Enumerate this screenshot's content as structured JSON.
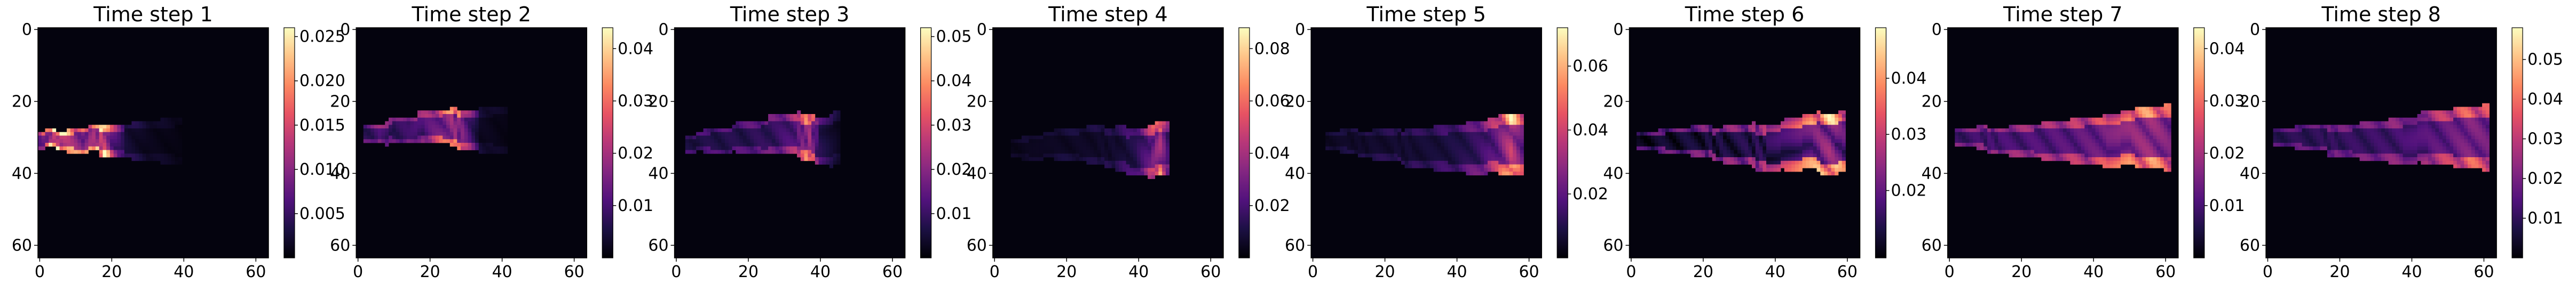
{
  "figure": {
    "colormap": "magma",
    "colormap_stops": [
      "#000004",
      "#1c1044",
      "#51127c",
      "#832681",
      "#b73779",
      "#e75263",
      "#fc8961",
      "#fec488",
      "#fcfdbf"
    ]
  },
  "chart_data": [
    {
      "type": "heatmap",
      "title": "Time step 1",
      "grid_size": [
        64,
        64
      ],
      "x_ticks": [
        "0",
        "20",
        "40",
        "60"
      ],
      "y_ticks": [
        "0",
        "20",
        "40",
        "60"
      ],
      "colorbar_ticks": [
        "0.005",
        "0.010",
        "0.015",
        "0.020",
        "0.025"
      ],
      "colorbar_tick_values": [
        0.005,
        0.01,
        0.015,
        0.02,
        0.025
      ],
      "colorbar_range": [
        0.0,
        0.026
      ],
      "plume": [
        {
          "x": 0,
          "y": 31,
          "v": 0.01
        },
        {
          "x": 3,
          "y": 30,
          "v": 0.021
        },
        {
          "x": 6,
          "y": 31,
          "v": 0.022
        },
        {
          "x": 9,
          "y": 31,
          "v": 0.018
        },
        {
          "x": 12,
          "y": 31,
          "v": 0.016
        },
        {
          "x": 15,
          "y": 30,
          "v": 0.018
        },
        {
          "x": 18,
          "y": 31,
          "v": 0.023
        },
        {
          "x": 20,
          "y": 31,
          "v": 0.013
        },
        {
          "x": 24,
          "y": 31,
          "v": 0.004
        },
        {
          "x": 30,
          "y": 31,
          "v": 0.002
        },
        {
          "x": 40,
          "y": 31,
          "v": 0.001
        }
      ]
    },
    {
      "type": "heatmap",
      "title": "Time step 2",
      "grid_size": [
        64,
        64
      ],
      "x_ticks": [
        "0",
        "20",
        "40",
        "60"
      ],
      "y_ticks": [
        "0",
        "20",
        "40",
        "60"
      ],
      "colorbar_ticks": [
        "0.01",
        "0.02",
        "0.03",
        "0.04"
      ],
      "colorbar_tick_values": [
        0.01,
        0.02,
        0.03,
        0.04
      ],
      "colorbar_range": [
        0.0,
        0.044
      ],
      "plume": [
        {
          "x": 2,
          "y": 29,
          "v": 0.012
        },
        {
          "x": 6,
          "y": 29,
          "v": 0.016
        },
        {
          "x": 10,
          "y": 28,
          "v": 0.013
        },
        {
          "x": 14,
          "y": 28,
          "v": 0.014
        },
        {
          "x": 18,
          "y": 27,
          "v": 0.017
        },
        {
          "x": 22,
          "y": 27,
          "v": 0.022
        },
        {
          "x": 26,
          "y": 27,
          "v": 0.03
        },
        {
          "x": 29,
          "y": 28,
          "v": 0.025
        },
        {
          "x": 34,
          "y": 28,
          "v": 0.004
        },
        {
          "x": 42,
          "y": 28,
          "v": 0.002
        }
      ]
    },
    {
      "type": "heatmap",
      "title": "Time step 3",
      "grid_size": [
        64,
        64
      ],
      "x_ticks": [
        "0",
        "20",
        "40",
        "60"
      ],
      "y_ticks": [
        "0",
        "20",
        "40",
        "60"
      ],
      "colorbar_ticks": [
        "0.01",
        "0.02",
        "0.03",
        "0.04",
        "0.05"
      ],
      "colorbar_tick_values": [
        0.01,
        0.02,
        0.03,
        0.04,
        0.05
      ],
      "colorbar_range": [
        0.0,
        0.052
      ],
      "plume": [
        {
          "x": 3,
          "y": 32,
          "v": 0.01
        },
        {
          "x": 8,
          "y": 31,
          "v": 0.011
        },
        {
          "x": 13,
          "y": 31,
          "v": 0.012
        },
        {
          "x": 18,
          "y": 30,
          "v": 0.012
        },
        {
          "x": 23,
          "y": 30,
          "v": 0.014
        },
        {
          "x": 28,
          "y": 29,
          "v": 0.016
        },
        {
          "x": 33,
          "y": 29,
          "v": 0.022
        },
        {
          "x": 37,
          "y": 30,
          "v": 0.036
        },
        {
          "x": 40,
          "y": 31,
          "v": 0.012
        },
        {
          "x": 46,
          "y": 30,
          "v": 0.003
        }
      ]
    },
    {
      "type": "heatmap",
      "title": "Time step 4",
      "grid_size": [
        64,
        64
      ],
      "x_ticks": [
        "0",
        "20",
        "40",
        "60"
      ],
      "y_ticks": [
        "0",
        "20",
        "40",
        "60"
      ],
      "colorbar_ticks": [
        "0.02",
        "0.04",
        "0.06",
        "0.08"
      ],
      "colorbar_tick_values": [
        0.02,
        0.04,
        0.06,
        0.08
      ],
      "colorbar_range": [
        0.0,
        0.088
      ],
      "plume": [
        {
          "x": 5,
          "y": 33,
          "v": 0.006
        },
        {
          "x": 10,
          "y": 33,
          "v": 0.007
        },
        {
          "x": 16,
          "y": 32,
          "v": 0.008
        },
        {
          "x": 22,
          "y": 32,
          "v": 0.009
        },
        {
          "x": 28,
          "y": 32,
          "v": 0.01
        },
        {
          "x": 34,
          "y": 33,
          "v": 0.012
        },
        {
          "x": 39,
          "y": 34,
          "v": 0.02
        },
        {
          "x": 43,
          "y": 34,
          "v": 0.04
        },
        {
          "x": 46,
          "y": 33,
          "v": 0.062
        },
        {
          "x": 49,
          "y": 33,
          "v": 0.016
        }
      ]
    },
    {
      "type": "heatmap",
      "title": "Time step 5",
      "grid_size": [
        64,
        64
      ],
      "x_ticks": [
        "0",
        "20",
        "40",
        "60"
      ],
      "y_ticks": [
        "0",
        "20",
        "40",
        "60"
      ],
      "colorbar_ticks": [
        "0.02",
        "0.04",
        "0.06"
      ],
      "colorbar_tick_values": [
        0.02,
        0.04,
        0.06
      ],
      "colorbar_range": [
        0.0,
        0.072
      ],
      "plume": [
        {
          "x": 4,
          "y": 31,
          "v": 0.007
        },
        {
          "x": 10,
          "y": 31,
          "v": 0.008
        },
        {
          "x": 16,
          "y": 32,
          "v": 0.009
        },
        {
          "x": 22,
          "y": 32,
          "v": 0.01
        },
        {
          "x": 28,
          "y": 33,
          "v": 0.011
        },
        {
          "x": 34,
          "y": 33,
          "v": 0.012
        },
        {
          "x": 40,
          "y": 33,
          "v": 0.015
        },
        {
          "x": 46,
          "y": 33,
          "v": 0.022
        },
        {
          "x": 51,
          "y": 32,
          "v": 0.034
        },
        {
          "x": 55,
          "y": 32,
          "v": 0.06
        },
        {
          "x": 59,
          "y": 32,
          "v": 0.03
        }
      ]
    },
    {
      "type": "heatmap",
      "title": "Time step 6",
      "grid_size": [
        64,
        64
      ],
      "x_ticks": [
        "0",
        "20",
        "40",
        "60"
      ],
      "y_ticks": [
        "0",
        "20",
        "40",
        "60"
      ],
      "colorbar_ticks": [
        "0.02",
        "0.03",
        "0.04"
      ],
      "colorbar_tick_values": [
        0.02,
        0.03,
        0.04
      ],
      "colorbar_range": [
        0.008,
        0.049
      ],
      "plume": [
        {
          "x": 2,
          "y": 31,
          "v": 0.016
        },
        {
          "x": 8,
          "y": 31,
          "v": 0.018
        },
        {
          "x": 14,
          "y": 31,
          "v": 0.019
        },
        {
          "x": 20,
          "y": 31,
          "v": 0.02
        },
        {
          "x": 26,
          "y": 32,
          "v": 0.021
        },
        {
          "x": 32,
          "y": 32,
          "v": 0.022
        },
        {
          "x": 38,
          "y": 33,
          "v": 0.024
        },
        {
          "x": 44,
          "y": 32,
          "v": 0.028
        },
        {
          "x": 50,
          "y": 31,
          "v": 0.034
        },
        {
          "x": 55,
          "y": 32,
          "v": 0.04
        },
        {
          "x": 60,
          "y": 31,
          "v": 0.03
        }
      ]
    },
    {
      "type": "heatmap",
      "title": "Time step 7",
      "grid_size": [
        64,
        64
      ],
      "x_ticks": [
        "0",
        "20",
        "40",
        "60"
      ],
      "y_ticks": [
        "0",
        "20",
        "40",
        "60"
      ],
      "colorbar_ticks": [
        "0.01",
        "0.02",
        "0.03",
        "0.04"
      ],
      "colorbar_tick_values": [
        0.01,
        0.02,
        0.03,
        0.04
      ],
      "colorbar_range": [
        0.0,
        0.044
      ],
      "plume": [
        {
          "x": 2,
          "y": 30,
          "v": 0.014
        },
        {
          "x": 8,
          "y": 30,
          "v": 0.015
        },
        {
          "x": 14,
          "y": 31,
          "v": 0.016
        },
        {
          "x": 20,
          "y": 31,
          "v": 0.017
        },
        {
          "x": 26,
          "y": 31,
          "v": 0.018
        },
        {
          "x": 32,
          "y": 31,
          "v": 0.019
        },
        {
          "x": 38,
          "y": 31,
          "v": 0.021
        },
        {
          "x": 44,
          "y": 31,
          "v": 0.024
        },
        {
          "x": 50,
          "y": 30,
          "v": 0.028
        },
        {
          "x": 56,
          "y": 30,
          "v": 0.03
        },
        {
          "x": 62,
          "y": 30,
          "v": 0.024
        }
      ]
    },
    {
      "type": "heatmap",
      "title": "Time step 8",
      "grid_size": [
        64,
        64
      ],
      "x_ticks": [
        "0",
        "20",
        "40",
        "60"
      ],
      "y_ticks": [
        "0",
        "20",
        "40",
        "60"
      ],
      "colorbar_ticks": [
        "0.01",
        "0.02",
        "0.03",
        "0.04",
        "0.05"
      ],
      "colorbar_tick_values": [
        0.01,
        0.02,
        0.03,
        0.04,
        0.05
      ],
      "colorbar_range": [
        0.0,
        0.058
      ],
      "plume": [
        {
          "x": 2,
          "y": 30,
          "v": 0.014
        },
        {
          "x": 8,
          "y": 30,
          "v": 0.015
        },
        {
          "x": 14,
          "y": 30,
          "v": 0.016
        },
        {
          "x": 20,
          "y": 31,
          "v": 0.017
        },
        {
          "x": 26,
          "y": 31,
          "v": 0.018
        },
        {
          "x": 32,
          "y": 31,
          "v": 0.019
        },
        {
          "x": 38,
          "y": 31,
          "v": 0.021
        },
        {
          "x": 44,
          "y": 30,
          "v": 0.024
        },
        {
          "x": 50,
          "y": 30,
          "v": 0.028
        },
        {
          "x": 56,
          "y": 30,
          "v": 0.034
        },
        {
          "x": 62,
          "y": 30,
          "v": 0.03
        }
      ]
    }
  ]
}
